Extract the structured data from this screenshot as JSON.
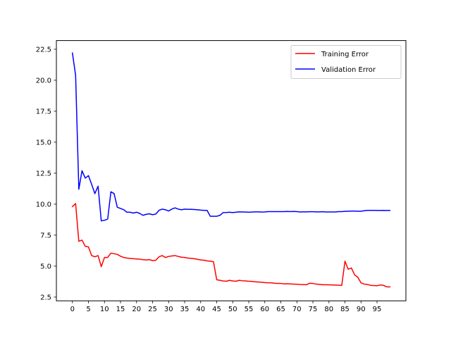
{
  "chart_data": {
    "type": "line",
    "title": "",
    "xlabel": "",
    "ylabel": "",
    "xlim": [
      -5,
      104
    ],
    "ylim": [
      2.2,
      23.2
    ],
    "grid": false,
    "legend_position": "top-right",
    "x_ticks": [
      0,
      5,
      10,
      15,
      20,
      25,
      30,
      35,
      40,
      45,
      50,
      55,
      60,
      65,
      70,
      75,
      80,
      85,
      90,
      95
    ],
    "x_tick_labels": [
      "0",
      "5",
      "10",
      "15",
      "20",
      "25",
      "30",
      "35",
      "40",
      "45",
      "50",
      "55",
      "60",
      "65",
      "70",
      "75",
      "80",
      "85",
      "90",
      "95"
    ],
    "y_ticks": [
      2.5,
      5.0,
      7.5,
      10.0,
      12.5,
      15.0,
      17.5,
      20.0,
      22.5
    ],
    "y_tick_labels": [
      "2.5",
      "5.0",
      "7.5",
      "10.0",
      "12.5",
      "15.0",
      "17.5",
      "20.0",
      "22.5"
    ],
    "series": [
      {
        "name": "Training Error",
        "color": "#ff0000",
        "y": [
          9.8,
          10.05,
          7.0,
          7.1,
          6.6,
          6.55,
          5.85,
          5.75,
          5.85,
          4.95,
          5.7,
          5.7,
          6.05,
          6.0,
          5.95,
          5.8,
          5.7,
          5.65,
          5.62,
          5.6,
          5.58,
          5.56,
          5.52,
          5.5,
          5.52,
          5.45,
          5.47,
          5.75,
          5.85,
          5.7,
          5.78,
          5.82,
          5.85,
          5.78,
          5.72,
          5.7,
          5.65,
          5.63,
          5.6,
          5.55,
          5.5,
          5.48,
          5.42,
          5.4,
          5.35,
          3.9,
          3.85,
          3.8,
          3.78,
          3.85,
          3.8,
          3.78,
          3.85,
          3.82,
          3.8,
          3.78,
          3.77,
          3.74,
          3.72,
          3.7,
          3.67,
          3.65,
          3.65,
          3.62,
          3.6,
          3.6,
          3.57,
          3.58,
          3.56,
          3.55,
          3.54,
          3.52,
          3.51,
          3.5,
          3.62,
          3.6,
          3.55,
          3.53,
          3.5,
          3.5,
          3.49,
          3.48,
          3.47,
          3.46,
          3.45,
          5.4,
          4.75,
          4.85,
          4.3,
          4.1,
          3.65,
          3.55,
          3.52,
          3.45,
          3.43,
          3.42,
          3.48,
          3.45,
          3.33,
          3.32
        ]
      },
      {
        "name": "Validation Error",
        "color": "#0000ff",
        "y": [
          22.2,
          20.4,
          11.2,
          12.7,
          12.1,
          12.3,
          11.6,
          10.85,
          11.45,
          8.65,
          8.7,
          8.8,
          11.0,
          10.85,
          9.75,
          9.65,
          9.55,
          9.35,
          9.35,
          9.28,
          9.35,
          9.25,
          9.1,
          9.18,
          9.22,
          9.15,
          9.2,
          9.5,
          9.6,
          9.55,
          9.45,
          9.6,
          9.7,
          9.6,
          9.55,
          9.6,
          9.58,
          9.58,
          9.57,
          9.55,
          9.52,
          9.5,
          9.5,
          9.02,
          9.02,
          9.02,
          9.1,
          9.32,
          9.33,
          9.35,
          9.32,
          9.35,
          9.38,
          9.37,
          9.36,
          9.35,
          9.36,
          9.38,
          9.38,
          9.36,
          9.37,
          9.4,
          9.4,
          9.4,
          9.4,
          9.4,
          9.4,
          9.41,
          9.4,
          9.41,
          9.4,
          9.37,
          9.38,
          9.38,
          9.39,
          9.39,
          9.38,
          9.38,
          9.39,
          9.37,
          9.37,
          9.37,
          9.37,
          9.4,
          9.4,
          9.42,
          9.43,
          9.44,
          9.44,
          9.43,
          9.43,
          9.47,
          9.5,
          9.5,
          9.5,
          9.49,
          9.49,
          9.5,
          9.49,
          9.49
        ]
      }
    ]
  }
}
